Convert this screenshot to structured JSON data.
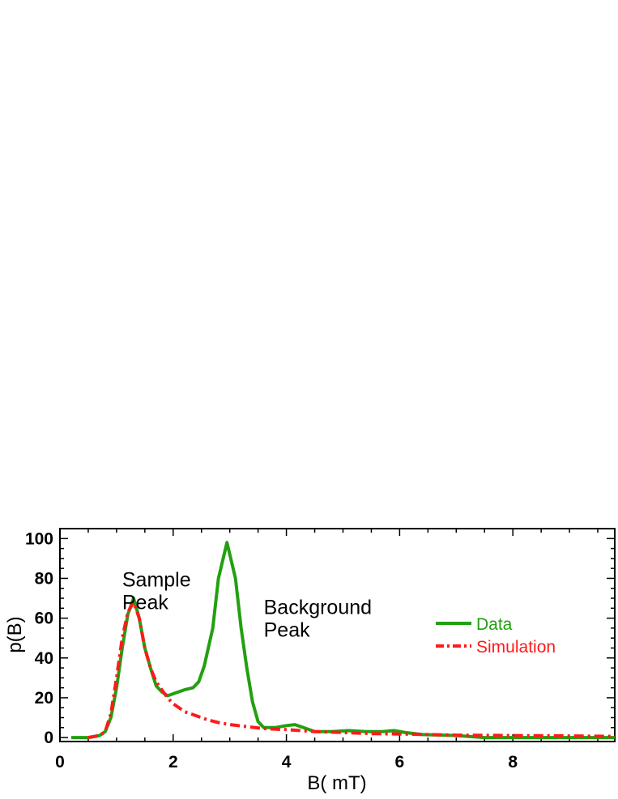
{
  "chart_data": {
    "type": "line",
    "title": "",
    "xlabel": "B( mT)",
    "ylabel": "p(B)",
    "xlim": [
      0,
      9.8
    ],
    "ylim": [
      -2,
      105
    ],
    "xticks": [
      0,
      2,
      4,
      6,
      8
    ],
    "yticks": [
      0,
      20,
      40,
      60,
      80,
      100
    ],
    "legend": "right",
    "annotations": [
      {
        "lines": [
          "Sample",
          "Peak"
        ],
        "x": 1.1,
        "y": 76
      },
      {
        "lines": [
          "Background",
          "Peak"
        ],
        "x": 3.6,
        "y": 62
      }
    ],
    "series": [
      {
        "name": "Data",
        "color": "#22a010",
        "style": "solid",
        "points": [
          [
            0.2,
            0
          ],
          [
            0.5,
            0
          ],
          [
            0.6,
            0.5
          ],
          [
            0.7,
            1
          ],
          [
            0.8,
            3
          ],
          [
            0.9,
            10
          ],
          [
            1.0,
            25
          ],
          [
            1.1,
            45
          ],
          [
            1.2,
            62
          ],
          [
            1.3,
            70
          ],
          [
            1.4,
            60
          ],
          [
            1.5,
            45
          ],
          [
            1.6,
            35
          ],
          [
            1.7,
            26
          ],
          [
            1.8,
            23
          ],
          [
            1.9,
            21
          ],
          [
            2.0,
            22
          ],
          [
            2.2,
            24
          ],
          [
            2.35,
            25
          ],
          [
            2.45,
            28
          ],
          [
            2.55,
            36
          ],
          [
            2.7,
            55
          ],
          [
            2.8,
            80
          ],
          [
            2.95,
            98
          ],
          [
            3.1,
            80
          ],
          [
            3.2,
            55
          ],
          [
            3.3,
            35
          ],
          [
            3.4,
            18
          ],
          [
            3.5,
            8
          ],
          [
            3.6,
            5
          ],
          [
            3.8,
            5
          ],
          [
            4.0,
            6
          ],
          [
            4.15,
            6.5
          ],
          [
            4.3,
            5
          ],
          [
            4.5,
            3
          ],
          [
            4.8,
            3
          ],
          [
            5.1,
            3.5
          ],
          [
            5.4,
            3
          ],
          [
            5.7,
            3
          ],
          [
            5.9,
            3.5
          ],
          [
            6.1,
            2.5
          ],
          [
            6.4,
            1.5
          ],
          [
            7.0,
            1
          ],
          [
            7.5,
            0
          ],
          [
            8.0,
            0
          ],
          [
            9.0,
            0
          ],
          [
            9.8,
            0
          ]
        ]
      },
      {
        "name": "Simulation",
        "color": "#ff1a1a",
        "style": "dashdot",
        "points": [
          [
            0.5,
            0
          ],
          [
            0.7,
            1
          ],
          [
            0.8,
            3
          ],
          [
            0.9,
            12
          ],
          [
            1.0,
            30
          ],
          [
            1.1,
            50
          ],
          [
            1.2,
            63
          ],
          [
            1.3,
            68
          ],
          [
            1.4,
            60
          ],
          [
            1.5,
            45
          ],
          [
            1.6,
            35
          ],
          [
            1.7,
            28
          ],
          [
            1.8,
            24
          ],
          [
            1.9,
            20
          ],
          [
            2.0,
            17
          ],
          [
            2.2,
            13
          ],
          [
            2.4,
            11
          ],
          [
            2.6,
            9
          ],
          [
            2.8,
            7.5
          ],
          [
            3.0,
            6.5
          ],
          [
            3.3,
            5.5
          ],
          [
            3.6,
            4.5
          ],
          [
            4.0,
            4
          ],
          [
            4.5,
            3
          ],
          [
            5.0,
            2.5
          ],
          [
            5.5,
            2
          ],
          [
            6.0,
            1.8
          ],
          [
            6.5,
            1.5
          ],
          [
            7.0,
            1.2
          ],
          [
            8.0,
            1
          ],
          [
            9.0,
            0.8
          ],
          [
            9.8,
            0.6
          ]
        ]
      }
    ]
  }
}
